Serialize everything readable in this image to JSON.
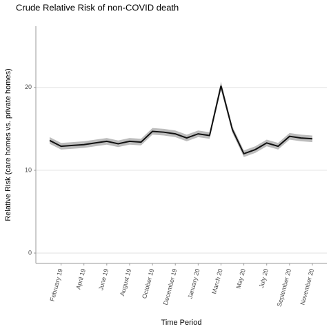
{
  "chart_data": {
    "type": "line",
    "title": "Crude Relative Risk of non-COVID death",
    "x_label": "Time Period",
    "y_label": "Relative Risk (care homes vs. private homes)",
    "categories": [
      null,
      "February 19",
      null,
      "April 19",
      null,
      "June 19",
      null,
      "August 19",
      null,
      "October 19",
      null,
      "December 19",
      null,
      "January 20",
      null,
      "March 20",
      null,
      "May 20",
      null,
      "July 20",
      null,
      "September 20",
      null,
      "November 20"
    ],
    "series": [
      {
        "color": "#111111",
        "values": [
          13.6,
          12.9,
          13.0,
          13.1,
          13.3,
          13.5,
          13.2,
          13.5,
          13.4,
          14.7,
          14.6,
          14.4,
          13.9,
          14.4,
          14.2,
          20.2,
          14.9,
          12.0,
          12.5,
          13.3,
          12.9,
          14.1,
          13.9,
          13.8
        ],
        "lower": [
          13.2,
          12.5,
          12.6,
          12.7,
          12.9,
          13.1,
          12.8,
          13.1,
          13.0,
          14.3,
          14.2,
          14.0,
          13.5,
          14.0,
          13.8,
          19.7,
          14.5,
          11.6,
          12.1,
          12.9,
          12.5,
          13.7,
          13.5,
          13.4
        ],
        "upper": [
          14.0,
          13.3,
          13.4,
          13.5,
          13.7,
          13.9,
          13.6,
          13.9,
          13.8,
          15.1,
          15.0,
          14.8,
          14.3,
          14.8,
          14.6,
          20.7,
          15.3,
          12.4,
          12.9,
          13.7,
          13.3,
          14.5,
          14.3,
          14.2
        ],
        "band_color": "#bdbdbd"
      }
    ],
    "ylim": [
      -1.25,
      27.4
    ],
    "yticks": [
      0,
      10,
      20
    ],
    "grid": true
  }
}
